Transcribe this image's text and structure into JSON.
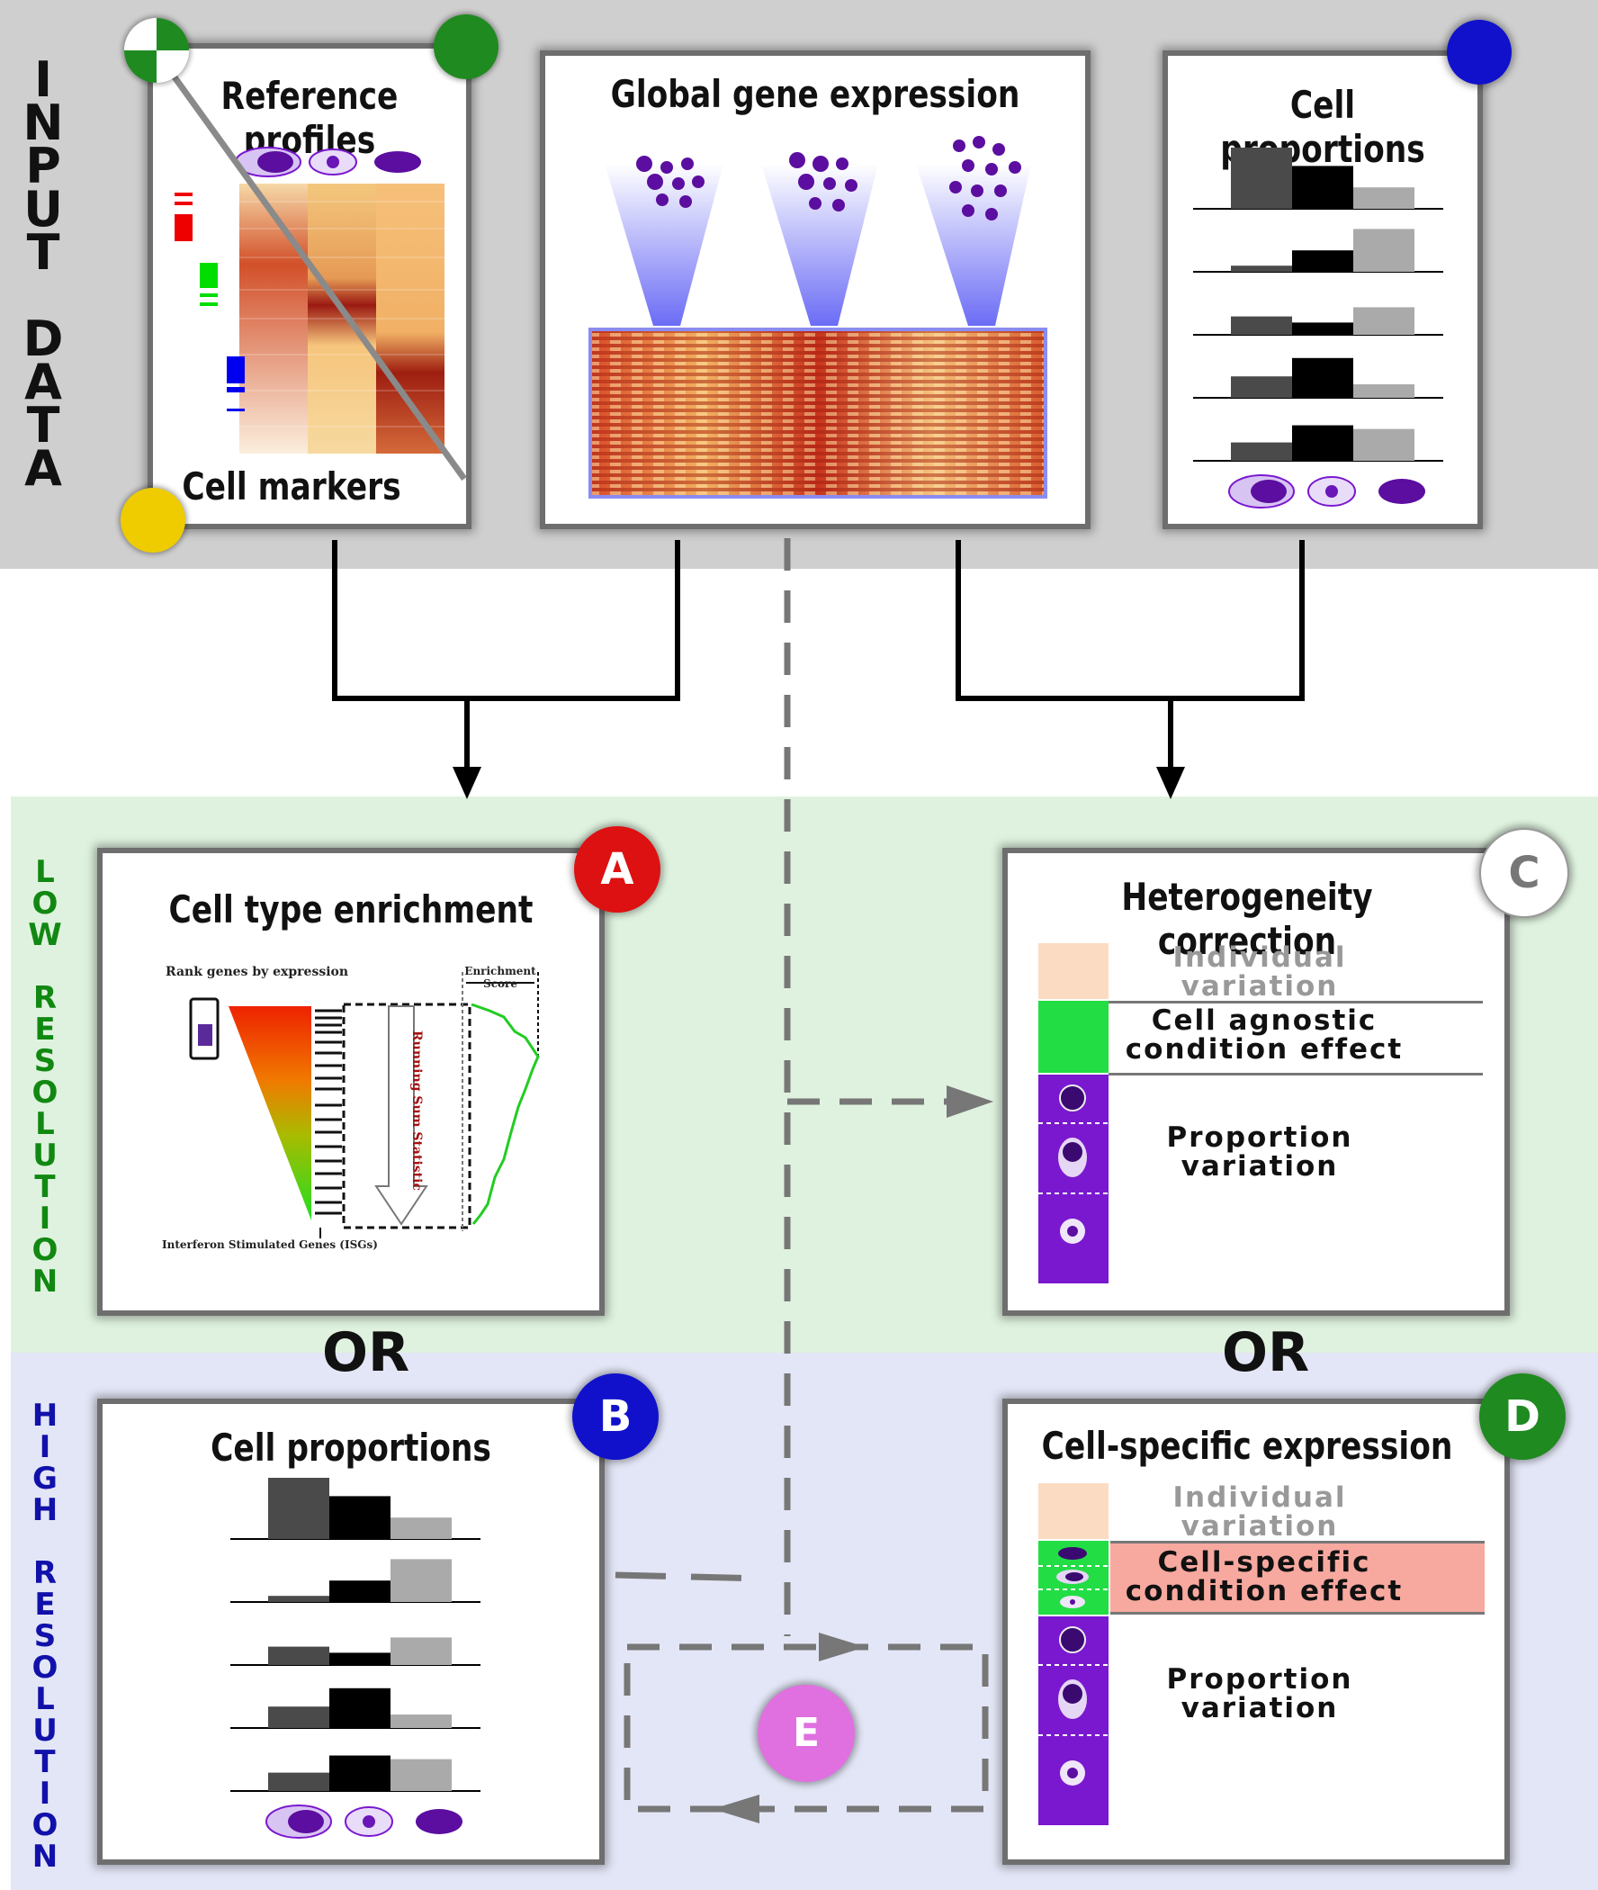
{
  "side_labels": {
    "input": "INPUT DATA",
    "low": "LOW RESOLUTION",
    "high": "HIGH RESOLUTION"
  },
  "input": {
    "reference_title": "Reference profiles",
    "markers_title": "Cell markers",
    "global_title": "Global gene expression",
    "proportions_title": "Cell proportions"
  },
  "panel_a": {
    "badge": "A",
    "title": "Cell type enrichment",
    "rank_label": "Rank genes by expression",
    "running_sum": "Running Sum Statistic",
    "enrichment_score": "Enrichment Score",
    "isg_label": "Interferon Stimulated Genes (ISGs)"
  },
  "panel_b": {
    "badge": "B",
    "title": "Cell proportions"
  },
  "panel_c": {
    "badge": "C",
    "title": "Heterogeneity correction",
    "individual": "Individual variation",
    "agnostic": "Cell agnostic condition effect",
    "proportion": "Proportion variation"
  },
  "panel_d": {
    "badge": "D",
    "title": "Cell-specific expression",
    "individual": "Individual variation",
    "specific": "Cell-specific condition effect",
    "proportion": "Proportion variation"
  },
  "panel_e": {
    "badge": "E"
  },
  "or_label": "OR",
  "proportion_bars": [
    [
      1.0,
      0.7,
      0.35
    ],
    [
      0.1,
      0.35,
      0.7
    ],
    [
      0.3,
      0.2,
      0.45
    ],
    [
      0.35,
      0.65,
      0.22
    ],
    [
      0.3,
      0.58,
      0.52
    ]
  ],
  "colors": {
    "badge_a": "#dd1111",
    "badge_b": "#1111cc",
    "badge_c": "#ffffff",
    "badge_d": "#1f8a1f",
    "badge_e": "#e070e0",
    "green_label": "#118811",
    "blue_label": "#1111aa",
    "purple": "#7a18d0"
  }
}
